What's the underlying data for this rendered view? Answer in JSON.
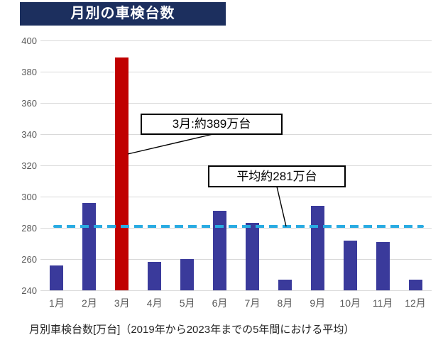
{
  "title": "月別の車検台数",
  "footer": "月別車検台数[万台]（2019年から2023年までの5年間における平均）",
  "annotations": {
    "march": "3月:約389万台",
    "average": "平均約281万台"
  },
  "colors": {
    "title_bg": "#1C2F5E",
    "bar": "#3A3A9B",
    "bar_highlight": "#C00000",
    "average_line": "#29ABE2",
    "gridline": "#D9D9D9",
    "axis_text": "#595959"
  },
  "chart_data": {
    "type": "bar",
    "title": "月別の車検台数",
    "categories": [
      "1月",
      "2月",
      "3月",
      "4月",
      "5月",
      "6月",
      "7月",
      "8月",
      "9月",
      "10月",
      "11月",
      "12月"
    ],
    "values": [
      256,
      296,
      389,
      258,
      260,
      291,
      283,
      247,
      294,
      272,
      271,
      247
    ],
    "highlight_index": 2,
    "highlight_label": "3月:約389万台",
    "average_value": 281,
    "average_label": "平均約281万台",
    "xlabel": "",
    "ylabel": "月別車検台数[万台]",
    "ylim": [
      240,
      400
    ],
    "ytick_step": 20,
    "grid": true,
    "legend": false
  }
}
